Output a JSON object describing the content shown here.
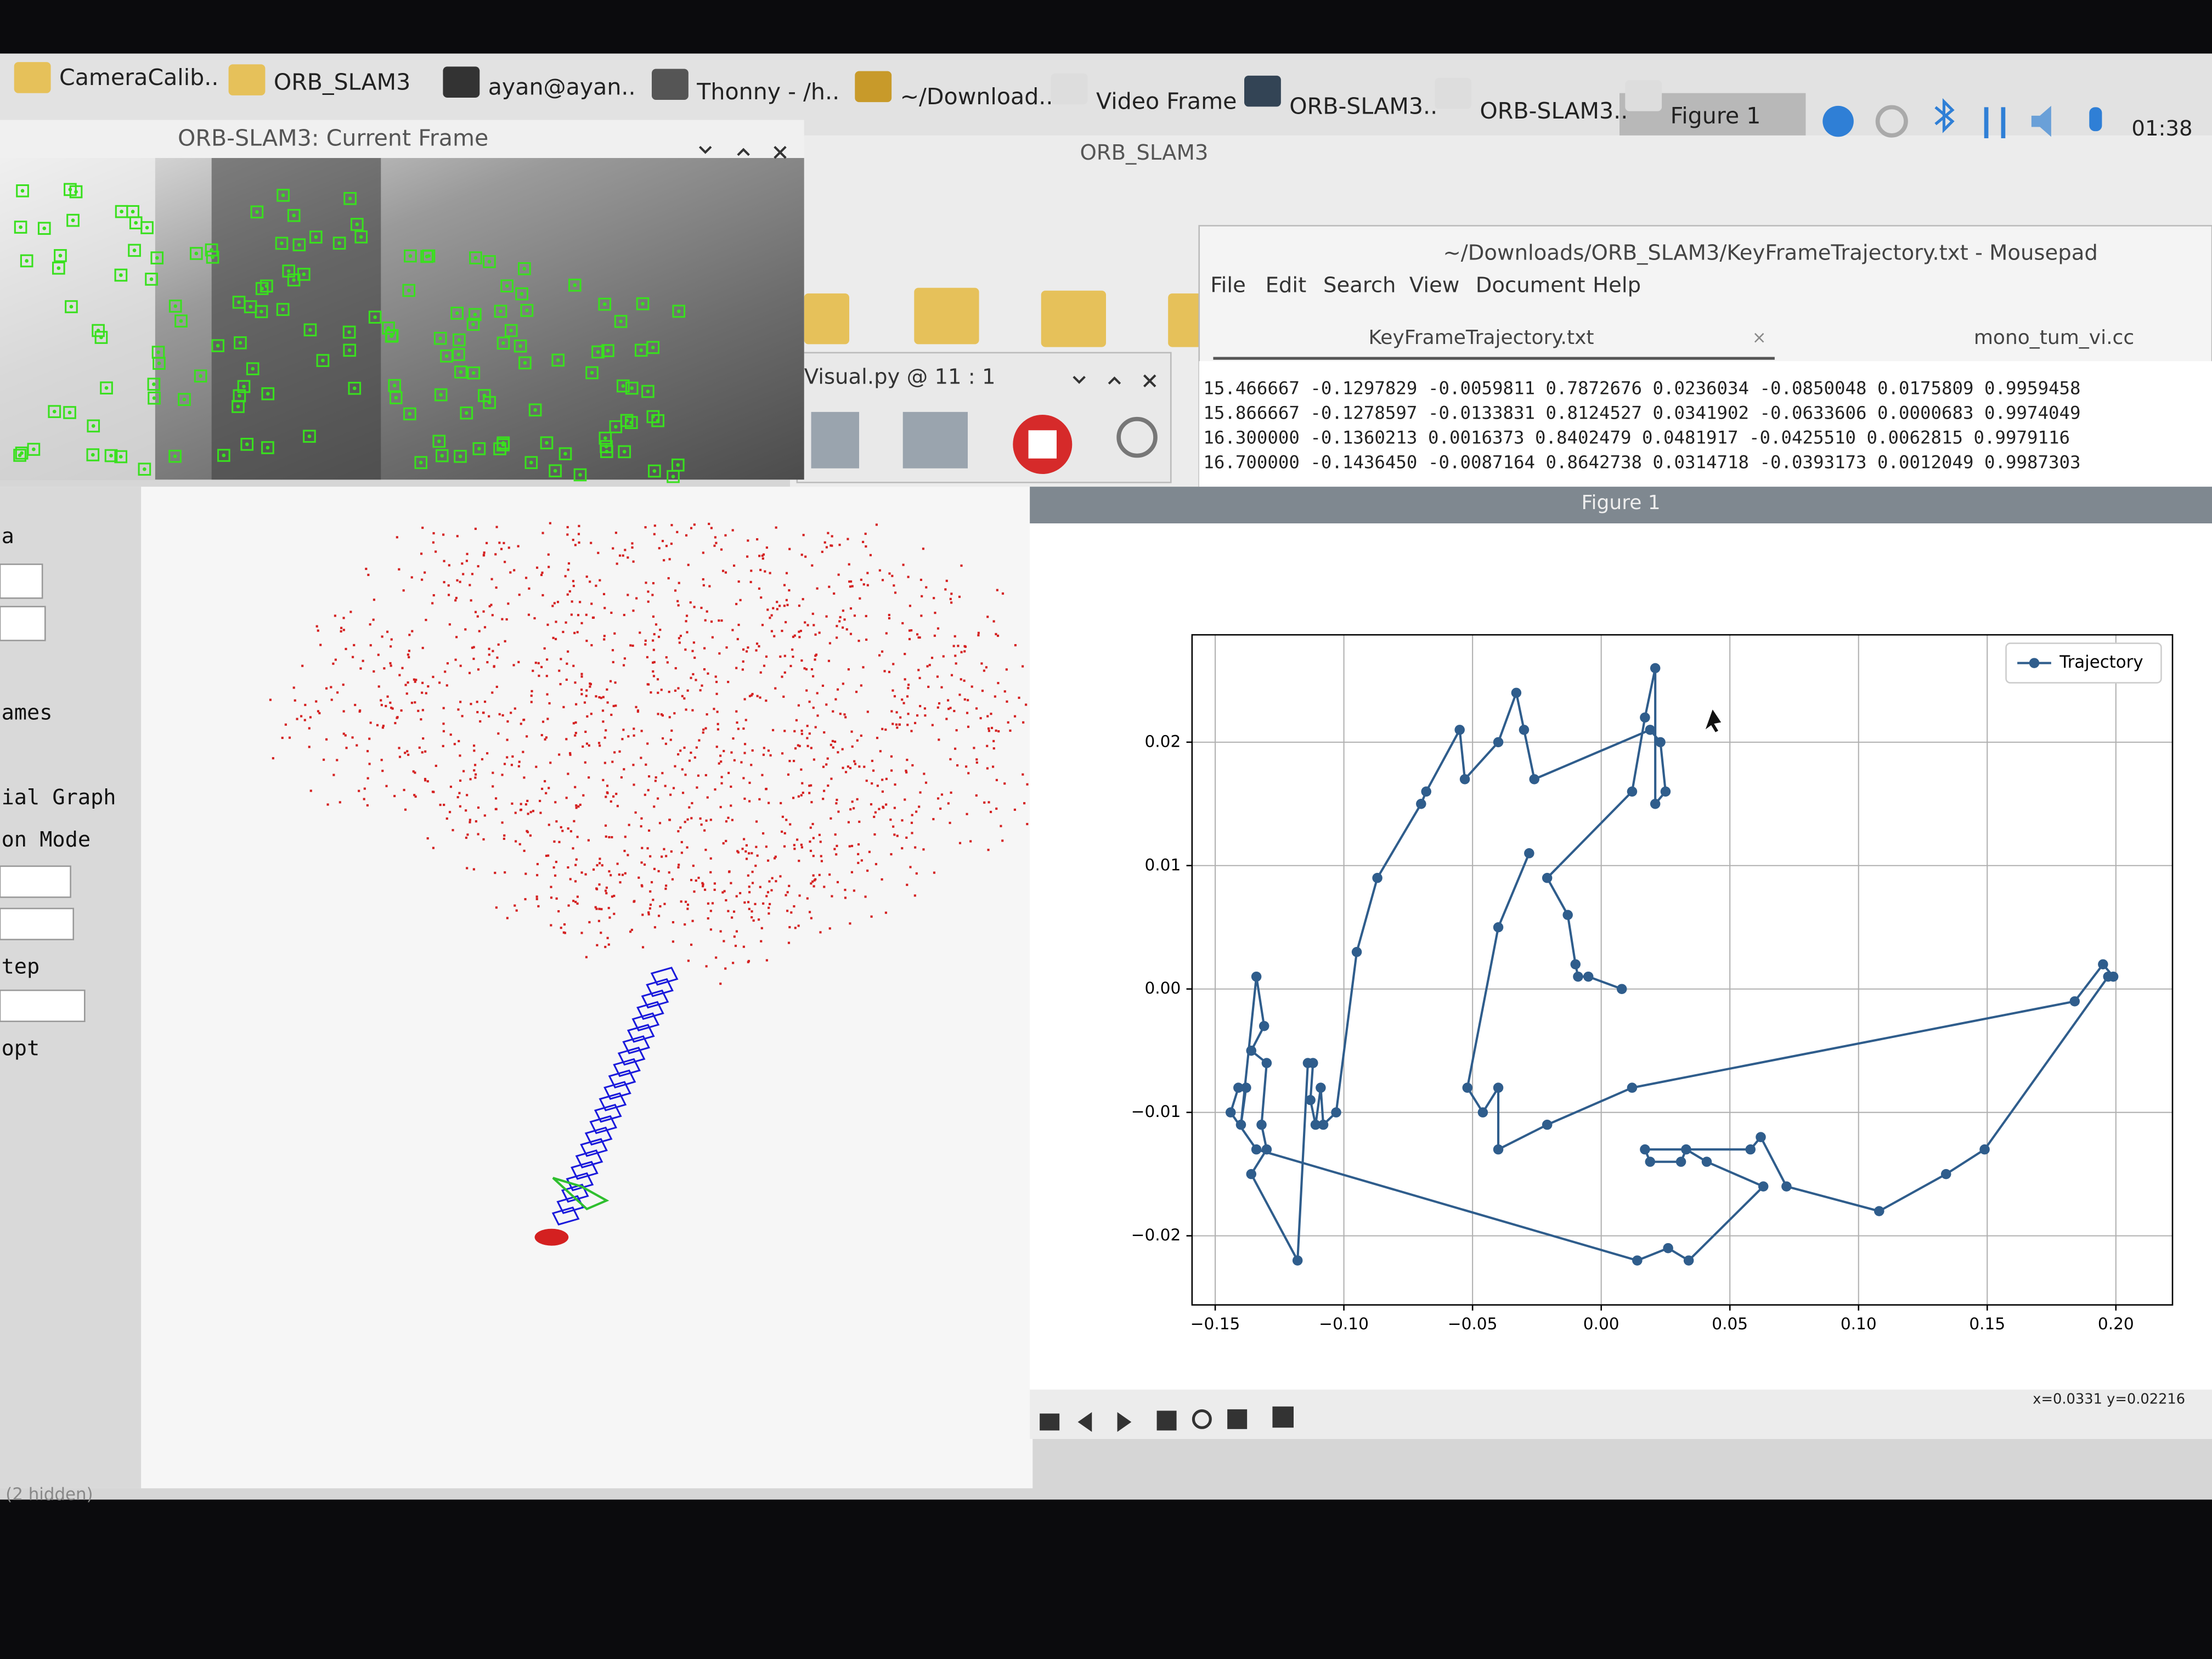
{
  "taskbar": {
    "items": [
      "CameraCalib..",
      "ORB_SLAM3",
      "ayan@ayan..",
      "Thonny - /h..",
      "~/Download..",
      "Video Frame",
      "ORB-SLAM3..",
      "ORB-SLAM3..",
      "Figure 1"
    ],
    "clock": "01:38"
  },
  "windows": {
    "current_frame": {
      "title": "ORB-SLAM3: Current Frame"
    },
    "file_manager": {
      "title": "ORB_SLAM3"
    },
    "thonny": {
      "tab": "Visual.py @ 11 : 1"
    },
    "mousepad": {
      "title": "~/Downloads/ORB_SLAM3/KeyFrameTrajectory.txt - Mousepad",
      "menu": [
        "File",
        "Edit",
        "Search",
        "View",
        "Document",
        "Help"
      ],
      "tabs": [
        "KeyFrameTrajectory.txt",
        "mono_tum_vi.cc"
      ],
      "lines": [
        "15.466667 -0.1297829 -0.0059811 0.7872676 0.0236034 -0.0850048 0.0175809 0.9959458",
        "15.866667 -0.1278597 -0.0133831 0.8124527 0.0341902 -0.0633606 0.0000683 0.9974049",
        "16.300000 -0.1360213 0.0016373 0.8402479 0.0481917 -0.0425510 0.0062815 0.9979116",
        "16.700000 -0.1436450 -0.0087164 0.8642738 0.0314718 -0.0393173 0.0012049 0.9987303"
      ]
    },
    "viewer": {
      "menu": [
        "a",
        "ames",
        "ial Graph",
        "on Mode",
        "tep",
        "opt"
      ],
      "status": "(2 hidden)"
    },
    "figure": {
      "title": "Figure 1",
      "status": "x=0.0331 y=0.02216"
    }
  },
  "chart_data": {
    "type": "line",
    "x": [
      0.008,
      -0.005,
      -0.009,
      -0.01,
      -0.013,
      -0.021,
      0.012,
      0.017,
      0.021,
      0.021,
      0.025,
      0.023,
      0.019,
      -0.026,
      -0.03,
      -0.033,
      -0.04,
      -0.053,
      -0.055,
      -0.068,
      -0.07,
      -0.087,
      -0.095,
      -0.103,
      -0.108,
      -0.109,
      -0.111,
      -0.113,
      -0.112,
      -0.114,
      -0.118,
      -0.136,
      -0.13,
      -0.132,
      -0.13,
      -0.136,
      -0.131,
      -0.134,
      -0.14,
      -0.138,
      -0.141,
      -0.144,
      -0.134,
      0.014,
      0.026,
      0.034,
      0.063,
      0.041,
      0.033,
      0.031,
      0.019,
      0.017,
      0.058,
      0.062,
      0.072,
      0.108,
      0.134,
      0.149,
      0.197,
      0.199,
      0.195,
      0.184,
      0.012,
      -0.021,
      -0.04,
      -0.04,
      -0.046,
      -0.052,
      -0.04,
      -0.028
    ],
    "series": [
      {
        "name": "Trajectory",
        "color": "#2f5d8c",
        "values": [
          0.0,
          0.001,
          0.001,
          0.002,
          0.006,
          0.009,
          0.016,
          0.022,
          0.026,
          0.015,
          0.016,
          0.02,
          0.021,
          0.017,
          0.021,
          0.024,
          0.02,
          0.017,
          0.021,
          0.016,
          0.015,
          0.009,
          0.003,
          -0.01,
          -0.011,
          -0.008,
          -0.011,
          -0.009,
          -0.006,
          -0.006,
          -0.022,
          -0.015,
          -0.013,
          -0.011,
          -0.006,
          -0.005,
          -0.003,
          0.001,
          -0.011,
          -0.008,
          -0.008,
          -0.01,
          -0.013,
          -0.022,
          -0.021,
          -0.022,
          -0.016,
          -0.014,
          -0.013,
          -0.014,
          -0.014,
          -0.013,
          -0.013,
          -0.012,
          -0.016,
          -0.018,
          -0.015,
          -0.013,
          0.001,
          0.001,
          0.002,
          -0.001,
          -0.008,
          -0.011,
          -0.013,
          -0.008,
          -0.01,
          -0.008,
          0.005,
          0.011
        ]
      }
    ],
    "xlim": [
      -0.159,
      0.222
    ],
    "ylim": [
      -0.0256,
      0.0287
    ],
    "xticks": [
      {
        "value": -0.15,
        "label": "−0.15"
      },
      {
        "value": -0.1,
        "label": "−0.10"
      },
      {
        "value": -0.05,
        "label": "−0.05"
      },
      {
        "value": 0,
        "label": "0.00"
      },
      {
        "value": 0.05,
        "label": "0.05"
      },
      {
        "value": 0.1,
        "label": "0.10"
      },
      {
        "value": 0.15,
        "label": "0.15"
      },
      {
        "value": 0.2,
        "label": "0.20"
      }
    ],
    "yticks": [
      {
        "value": -0.02,
        "label": "−0.02"
      },
      {
        "value": -0.01,
        "label": "−0.01"
      },
      {
        "value": 0,
        "label": "0.00"
      },
      {
        "value": 0.01,
        "label": "0.01"
      },
      {
        "value": 0.02,
        "label": "0.02"
      }
    ],
    "grid": true,
    "legend": "upper right"
  }
}
